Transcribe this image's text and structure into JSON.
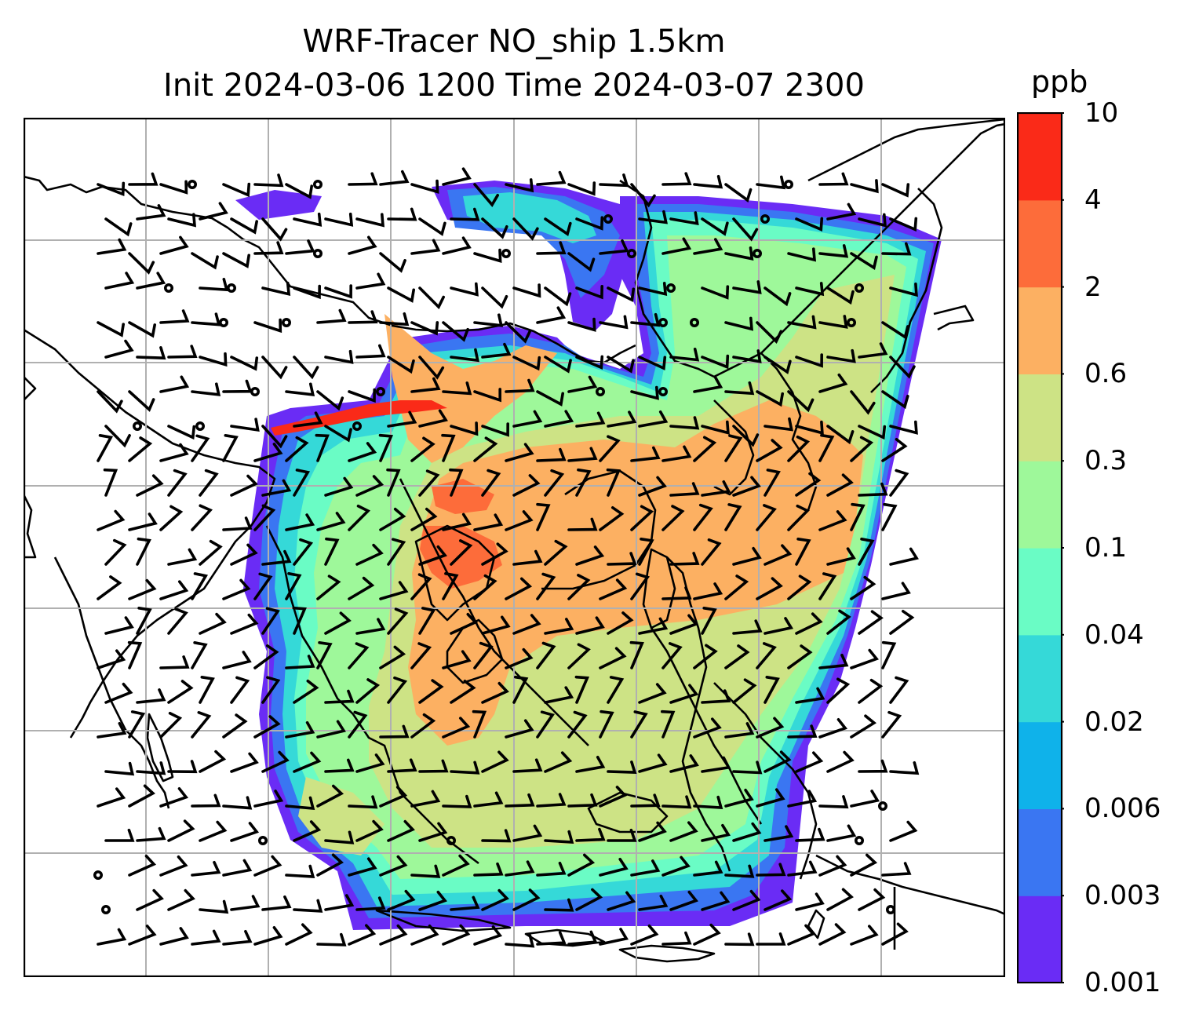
{
  "title_line1": "WRF-Tracer NO_ship 1.5km",
  "title_line2": "Init 2024-03-06 1200 Time 2024-03-07 2300",
  "colorbar": {
    "unit": "ppb",
    "levels": [
      "0.001",
      "0.003",
      "0.006",
      "0.02",
      "0.04",
      "0.1",
      "0.3",
      "0.6",
      "2",
      "4",
      "10"
    ],
    "colors": [
      "#6a2cf5",
      "#3a76f2",
      "#0fb2ea",
      "#35d9d8",
      "#6afcc5",
      "#9ef89a",
      "#cde385",
      "#fcb062",
      "#fd6c3a",
      "#fa2a18"
    ]
  },
  "map": {
    "field": "NO_ship",
    "gridlines": true,
    "wind_barbs": true,
    "colors": {
      "coast": "#000000",
      "grid": "#b0b0b0",
      "nodata": "#ffffff"
    }
  }
}
